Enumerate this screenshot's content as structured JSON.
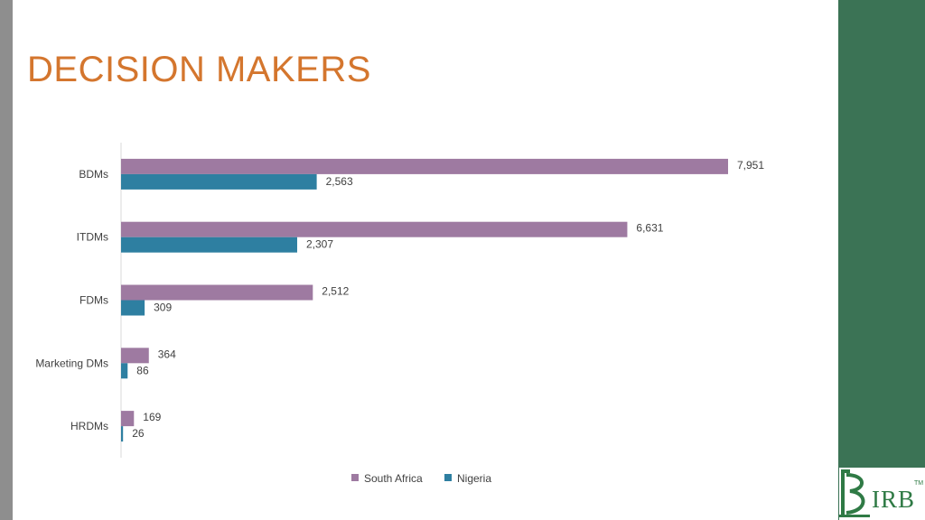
{
  "slide": {
    "title": "DECISION MAKERS"
  },
  "colors": {
    "south_africa": "#9e7aa1",
    "nigeria": "#2e7fa1",
    "title": "#d4762e",
    "panel": "#3b7355"
  },
  "logo": {
    "text": "IRB",
    "tm": "TM"
  },
  "chart_data": {
    "type": "bar",
    "orientation": "horizontal",
    "title": "",
    "categories": [
      "BDMs",
      "ITDMs",
      "FDMs",
      "Marketing DMs",
      "HRDMs"
    ],
    "series": [
      {
        "name": "South Africa",
        "values": [
          7951,
          6631,
          2512,
          364,
          169
        ],
        "labels": [
          "7,951",
          "6,631",
          "2,512",
          "364",
          "169"
        ]
      },
      {
        "name": "Nigeria",
        "values": [
          2563,
          2307,
          309,
          86,
          26
        ],
        "labels": [
          "2,563",
          "2,307",
          "309",
          "86",
          "26"
        ]
      }
    ],
    "xlim": [
      0,
      8000
    ],
    "grid": false,
    "legend": "bottom"
  }
}
